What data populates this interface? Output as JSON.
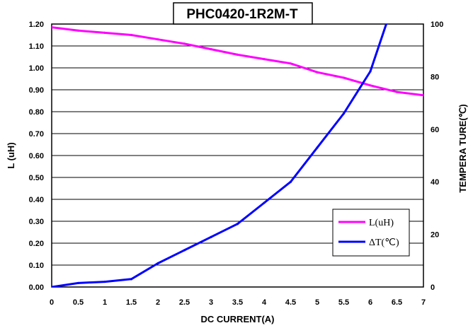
{
  "chart_data": {
    "type": "line",
    "title": "PHC0420-1R2M-T",
    "xlabel": "DC CURRENT(A)",
    "ylabel": "L (uH)",
    "y2label": "TEMPERA TURE(℃)",
    "xlim": [
      0,
      7
    ],
    "ylim": [
      0,
      1.2
    ],
    "y2lim": [
      0,
      100
    ],
    "x_ticks": [
      "0",
      "0.5",
      "1",
      "1.5",
      "2",
      "2.5",
      "3",
      "3.5",
      "4",
      "4.5",
      "5",
      "5.5",
      "6",
      "6.5",
      "7"
    ],
    "y_ticks": [
      "0.00",
      "0.10",
      "0.20",
      "0.30",
      "0.40",
      "0.50",
      "0.60",
      "0.70",
      "0.80",
      "0.90",
      "1.00",
      "1.10",
      "1.20"
    ],
    "y2_ticks": [
      "0",
      "20",
      "40",
      "60",
      "80",
      "100"
    ],
    "grid": "horizontal",
    "legend_position": "bottom-right",
    "series": [
      {
        "name": "L(uH)",
        "axis": "left",
        "color": "#ff00ff",
        "x": [
          0,
          0.5,
          1,
          1.5,
          2,
          2.5,
          3,
          3.5,
          4,
          4.5,
          5,
          5.5,
          6,
          6.5,
          7
        ],
        "values": [
          1.185,
          1.17,
          1.16,
          1.15,
          1.13,
          1.11,
          1.085,
          1.06,
          1.04,
          1.02,
          0.98,
          0.955,
          0.92,
          0.89,
          0.875
        ]
      },
      {
        "name": "ΔT(℃)",
        "axis": "right",
        "color": "#0000ff",
        "x": [
          0,
          0.5,
          1,
          1.5,
          2,
          2.5,
          3,
          3.5,
          4,
          4.5,
          5,
          5.5,
          6,
          6.3
        ],
        "values": [
          0,
          1.5,
          2,
          3,
          9,
          14,
          19,
          24,
          32,
          40,
          53,
          66,
          82,
          100
        ]
      }
    ]
  }
}
